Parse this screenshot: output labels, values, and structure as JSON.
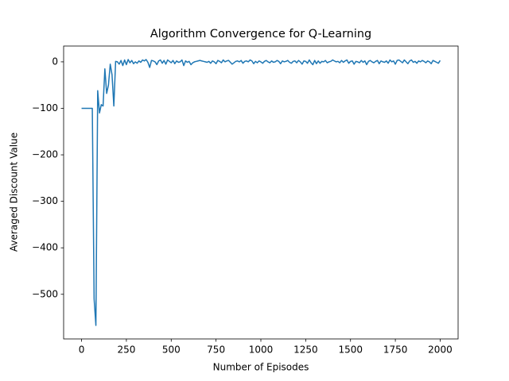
{
  "chart_data": {
    "type": "line",
    "title": "Algorithm Convergence for Q-Learning",
    "x_label": "Number of Episodes",
    "y_label": "Averaged Discount Value",
    "color": "#1f77b4",
    "xlim": [
      -100,
      2100
    ],
    "xticks": [
      0,
      250,
      500,
      750,
      1000,
      1250,
      1500,
      1750,
      2000
    ],
    "ylim": [
      -596,
      34
    ],
    "yticks": [
      {
        "value": -500,
        "label": "−500"
      },
      {
        "value": -400,
        "label": "−400"
      },
      {
        "value": -300,
        "label": "−300"
      },
      {
        "value": -200,
        "label": "−200"
      },
      {
        "value": -100,
        "label": "−100"
      },
      0
    ],
    "x": [
      0,
      10,
      20,
      30,
      40,
      50,
      60,
      70,
      80,
      90,
      100,
      110,
      120,
      130,
      140,
      150,
      160,
      170,
      180,
      190,
      200,
      210,
      220,
      230,
      240,
      250,
      260,
      270,
      280,
      290,
      300,
      310,
      320,
      330,
      340,
      350,
      360,
      370,
      380,
      390,
      400,
      410,
      420,
      430,
      440,
      450,
      460,
      470,
      480,
      490,
      500,
      510,
      520,
      530,
      540,
      550,
      560,
      570,
      580,
      590,
      600,
      610,
      620,
      630,
      640,
      650,
      660,
      670,
      680,
      690,
      700,
      710,
      720,
      730,
      740,
      750,
      760,
      770,
      780,
      790,
      800,
      810,
      820,
      830,
      840,
      850,
      860,
      870,
      880,
      890,
      900,
      910,
      920,
      930,
      940,
      950,
      960,
      970,
      980,
      990,
      1000,
      1010,
      1020,
      1030,
      1040,
      1050,
      1060,
      1070,
      1080,
      1090,
      1100,
      1110,
      1120,
      1130,
      1140,
      1150,
      1160,
      1170,
      1180,
      1190,
      1200,
      1210,
      1220,
      1230,
      1240,
      1250,
      1260,
      1270,
      1280,
      1290,
      1300,
      1310,
      1320,
      1330,
      1340,
      1350,
      1360,
      1370,
      1380,
      1390,
      1400,
      1410,
      1420,
      1430,
      1440,
      1450,
      1460,
      1470,
      1480,
      1490,
      1500,
      1510,
      1520,
      1530,
      1540,
      1550,
      1560,
      1570,
      1580,
      1590,
      1600,
      1610,
      1620,
      1630,
      1640,
      1650,
      1660,
      1670,
      1680,
      1690,
      1700,
      1710,
      1720,
      1730,
      1740,
      1750,
      1760,
      1770,
      1780,
      1790,
      1800,
      1810,
      1820,
      1830,
      1840,
      1850,
      1860,
      1870,
      1880,
      1890,
      1900,
      1910,
      1920,
      1930,
      1940,
      1950,
      1960,
      1970,
      1980,
      1990,
      2000
    ],
    "values": [
      -100,
      -100,
      -100,
      -100,
      -100,
      -100,
      -100,
      -510,
      -567,
      -62,
      -110,
      -92,
      -95,
      -15,
      -68,
      -50,
      -5,
      -28,
      -95,
      1,
      0,
      -5,
      3,
      -8,
      4,
      -6,
      5,
      -2,
      3,
      -4,
      0,
      -3,
      2,
      -1,
      4,
      2,
      5,
      -1,
      -12,
      3,
      2,
      0,
      -6,
      2,
      4,
      -3,
      3,
      -5,
      4,
      1,
      -2,
      3,
      -4,
      2,
      -1,
      0,
      4,
      -8,
      2,
      -1,
      1,
      -6,
      -2,
      0,
      1,
      2,
      3,
      2,
      1,
      0,
      -1,
      1,
      -3,
      2,
      0,
      -4,
      3,
      1,
      -2,
      4,
      0,
      2,
      3,
      -1,
      -5,
      -2,
      1,
      2,
      0,
      3,
      -3,
      1,
      2,
      0,
      4,
      2,
      -4,
      1,
      -2,
      2,
      0,
      -3,
      1,
      3,
      0,
      -2,
      2,
      -1,
      0,
      3,
      1,
      -4,
      2,
      0,
      1,
      3,
      -1,
      -3,
      1,
      2,
      -2,
      3,
      0,
      -5,
      2,
      1,
      -3,
      4,
      -2,
      -6,
      3,
      -4,
      2,
      -3,
      1,
      0,
      3,
      -2,
      0,
      1,
      4,
      2,
      0,
      1,
      -2,
      3,
      -1,
      2,
      4,
      -3,
      1,
      2,
      -5,
      1,
      0,
      -2,
      3,
      -1,
      2,
      -6,
      1,
      3,
      0,
      -2,
      1,
      3,
      -4,
      2,
      0,
      -1,
      2,
      -3,
      4,
      0,
      2,
      -5,
      3,
      4,
      1,
      -2,
      4,
      0,
      -4,
      2,
      4,
      -1,
      1,
      -3,
      2,
      0,
      3,
      1,
      -2,
      2,
      0,
      -4,
      3,
      1,
      -1,
      -3,
      3
    ]
  }
}
